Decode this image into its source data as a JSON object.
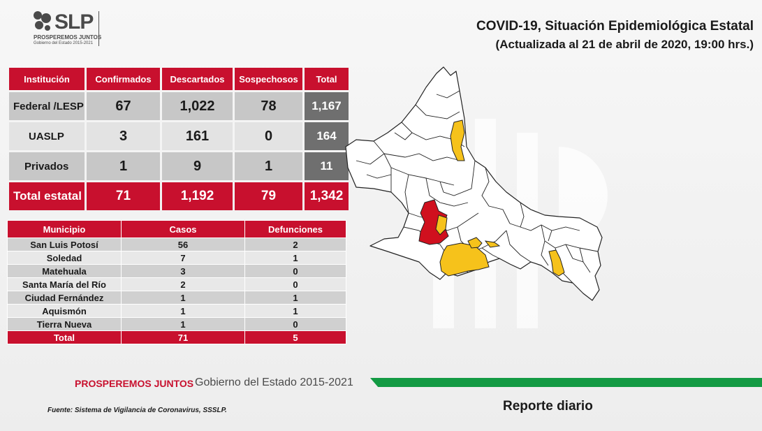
{
  "logo": {
    "text": "SLP",
    "line1": "PROSPEREMOS JUNTOS",
    "line2": "Gobierno del Estado 2015-2021"
  },
  "header": {
    "title": "COVID-19, Situación Epidemiológica Estatal",
    "subtitle": "(Actualizada al 21 de abril de 2020, 19:00 hrs.)"
  },
  "institutions_table": {
    "headers": [
      "Institución",
      "Confirmados",
      "Descartados",
      "Sospechosos",
      "Total"
    ],
    "rows": [
      [
        "Federal /LESP",
        "67",
        "1,022",
        "78",
        "1,167"
      ],
      [
        "UASLP",
        "3",
        "161",
        "0",
        "164"
      ],
      [
        "Privados",
        "1",
        "9",
        "1",
        "11"
      ]
    ],
    "total": [
      "Total estatal",
      "71",
      "1,192",
      "79",
      "1,342"
    ]
  },
  "municipios_table": {
    "headers": [
      "Municipio",
      "Casos",
      "Defunciones"
    ],
    "rows": [
      [
        "San Luis Potosí",
        "56",
        "2"
      ],
      [
        "Soledad",
        "7",
        "1"
      ],
      [
        "Matehuala",
        "3",
        "0"
      ],
      [
        "Santa María del Río",
        "2",
        "0"
      ],
      [
        "Ciudad Fernández",
        "1",
        "1"
      ],
      [
        "Aquismón",
        "1",
        "1"
      ],
      [
        "Tierra Nueva",
        "1",
        "0"
      ]
    ],
    "total": [
      "Total",
      "71",
      "5"
    ]
  },
  "map": {
    "colors": {
      "red": "#d0101e",
      "yellow": "#f6c21b",
      "white": "#ffffff",
      "outline": "#222222"
    }
  },
  "footer": {
    "brand": "PROSPEREMOS JUNTOS",
    "gov": "Gobierno del Estado 2015-2021",
    "source": "Fuente: Sistema de Vigilancia de Coronavirus, SSSLP.",
    "report": "Reporte diario"
  },
  "colors": {
    "accent": "#c8102e",
    "green": "#139a43",
    "total_gray": "#6f6f6f"
  }
}
